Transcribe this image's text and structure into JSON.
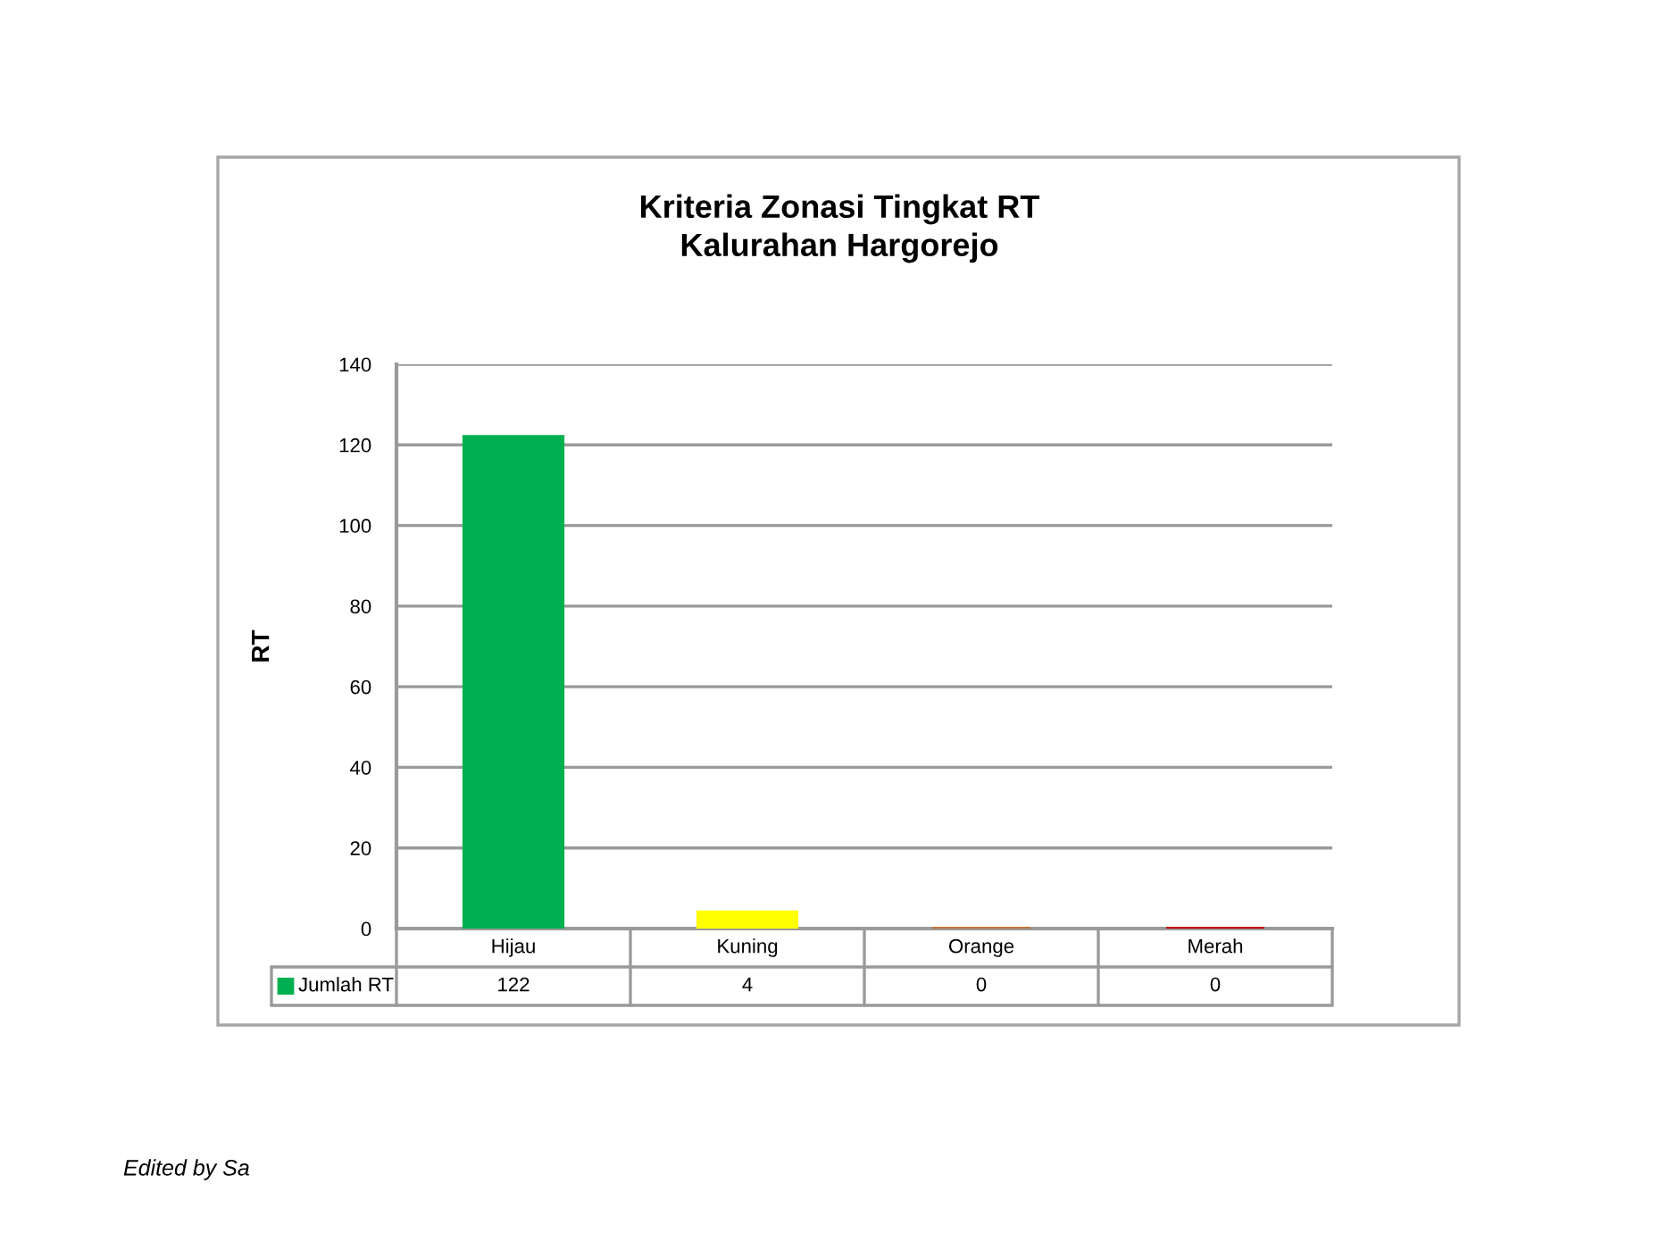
{
  "chart_data": {
    "type": "bar",
    "title": "Kriteria Zonasi Tingkat RT\nKalurahan Hargorejo",
    "ylabel": "RT",
    "categories": [
      "Hijau",
      "Kuning",
      "Orange",
      "Merah"
    ],
    "series": [
      {
        "name": "Jumlah RT",
        "color": "#00b050",
        "colors": [
          "#00b050",
          "#ffff00",
          "#c0733a",
          "#c00000"
        ],
        "values": [
          122,
          4,
          0,
          0
        ]
      }
    ],
    "ylim": [
      0,
      140
    ],
    "yticks": [
      0,
      20,
      40,
      60,
      80,
      100,
      120,
      140
    ],
    "grid": "y",
    "legend": "bottom",
    "data_labels": true,
    "annotations": [
      "Edited by Sa"
    ]
  }
}
